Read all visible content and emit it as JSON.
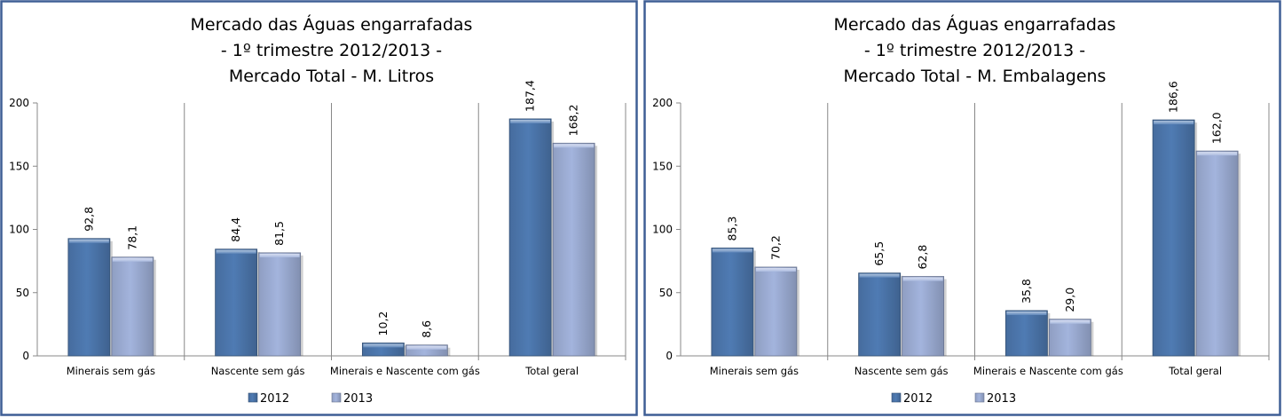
{
  "chart_data": [
    {
      "type": "bar",
      "title": [
        "Mercado das Águas engarrafadas",
        "- 1º trimestre 2012/2013 -",
        "Mercado Total  - M. Litros"
      ],
      "categories": [
        "Minerais sem gás",
        "Nascente sem gás",
        "Minerais e Nascente com gás",
        "Total geral"
      ],
      "series": [
        {
          "name": "2012",
          "values": [
            92.8,
            84.4,
            10.2,
            187.4
          ],
          "labels": [
            "92,8",
            "84,4",
            "10,2",
            "187,4"
          ],
          "color": "#4f7bb3"
        },
        {
          "name": "2013",
          "values": [
            78.1,
            81.5,
            8.6,
            168.2
          ],
          "labels": [
            "78,1",
            "81,5",
            "8,6",
            "168,2"
          ],
          "color": "#a3b4dd"
        }
      ],
      "ylim": [
        0,
        200
      ],
      "yticks": [
        0,
        50,
        100,
        150,
        200
      ],
      "grid": false,
      "legend": "bottom",
      "border_color": "#3f5f95"
    },
    {
      "type": "bar",
      "title": [
        "Mercado das Águas engarrafadas",
        "- 1º trimestre 2012/2013 -",
        "Mercado Total  - M. Embalagens"
      ],
      "categories": [
        "Minerais sem gás",
        "Nascente sem gás",
        "Minerais e Nascente com gás",
        "Total geral"
      ],
      "series": [
        {
          "name": "2012",
          "values": [
            85.3,
            65.5,
            35.8,
            186.6
          ],
          "labels": [
            "85,3",
            "65,5",
            "35,8",
            "186,6"
          ],
          "color": "#4f7bb3"
        },
        {
          "name": "2013",
          "values": [
            70.2,
            62.8,
            29.0,
            162.0
          ],
          "labels": [
            "70,2",
            "62,8",
            "29,0",
            "162,0"
          ],
          "color": "#a3b4dd"
        }
      ],
      "ylim": [
        0,
        200
      ],
      "yticks": [
        0,
        50,
        100,
        150,
        200
      ],
      "grid": false,
      "legend": "bottom",
      "border_color": "#3f5f95"
    }
  ]
}
